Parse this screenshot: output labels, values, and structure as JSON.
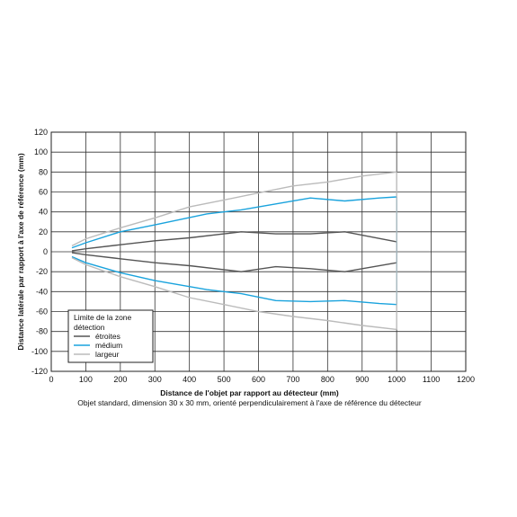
{
  "chart_data": {
    "type": "line",
    "xlabel": "Distance de l'objet par rapport au détecteur (mm)",
    "ylabel": "Distance latérale par rapport à l'axe de référence (mm)",
    "caption": "Objet standard, dimension 30 x 30 mm, orienté perpendiculairement à l'axe de référence du détecteur",
    "xlim": [
      0,
      1200
    ],
    "ylim": [
      -120,
      120
    ],
    "xticks": [
      0,
      100,
      200,
      300,
      400,
      500,
      600,
      700,
      800,
      900,
      1000,
      1100,
      1200
    ],
    "yticks": [
      -120,
      -100,
      -80,
      -60,
      -40,
      -20,
      0,
      20,
      40,
      60,
      80,
      100,
      120
    ],
    "grid": true,
    "legend": {
      "title_line1": "Limite de la zone",
      "title_line2": "détection",
      "placement": "bottom-left"
    },
    "series": [
      {
        "name": "étroites",
        "color": "#555555",
        "upper": [
          [
            60,
            1
          ],
          [
            100,
            3
          ],
          [
            200,
            7
          ],
          [
            300,
            11
          ],
          [
            400,
            14
          ],
          [
            500,
            18
          ],
          [
            550,
            20
          ],
          [
            650,
            18
          ],
          [
            750,
            18
          ],
          [
            850,
            20
          ],
          [
            1000,
            10
          ]
        ],
        "lower": [
          [
            60,
            -1
          ],
          [
            100,
            -3
          ],
          [
            200,
            -7
          ],
          [
            300,
            -11
          ],
          [
            400,
            -14
          ],
          [
            500,
            -18
          ],
          [
            550,
            -20
          ],
          [
            650,
            -15
          ],
          [
            750,
            -17
          ],
          [
            850,
            -20
          ],
          [
            1000,
            -11
          ]
        ]
      },
      {
        "name": "médium",
        "color": "#1aa3dd",
        "upper": [
          [
            60,
            4
          ],
          [
            100,
            9
          ],
          [
            200,
            20
          ],
          [
            300,
            27
          ],
          [
            450,
            38
          ],
          [
            550,
            42
          ],
          [
            650,
            48
          ],
          [
            750,
            54
          ],
          [
            850,
            51
          ],
          [
            950,
            54
          ],
          [
            1000,
            55
          ]
        ],
        "lower": [
          [
            60,
            -5
          ],
          [
            100,
            -11
          ],
          [
            200,
            -21
          ],
          [
            300,
            -29
          ],
          [
            450,
            -38
          ],
          [
            550,
            -42
          ],
          [
            650,
            -49
          ],
          [
            750,
            -50
          ],
          [
            850,
            -49
          ],
          [
            950,
            -52
          ],
          [
            1000,
            -53
          ]
        ]
      },
      {
        "name": "largeur",
        "color": "#bbbbbb",
        "upper": [
          [
            60,
            6
          ],
          [
            100,
            13
          ],
          [
            200,
            24
          ],
          [
            300,
            34
          ],
          [
            400,
            45
          ],
          [
            500,
            52
          ],
          [
            600,
            59
          ],
          [
            700,
            66
          ],
          [
            800,
            70
          ],
          [
            900,
            76
          ],
          [
            1000,
            80
          ]
        ],
        "lower": [
          [
            60,
            -6
          ],
          [
            100,
            -13
          ],
          [
            200,
            -25
          ],
          [
            300,
            -35
          ],
          [
            400,
            -46
          ],
          [
            500,
            -53
          ],
          [
            600,
            -60
          ],
          [
            700,
            -65
          ],
          [
            800,
            -69
          ],
          [
            900,
            -74
          ],
          [
            1000,
            -78
          ]
        ]
      }
    ]
  }
}
